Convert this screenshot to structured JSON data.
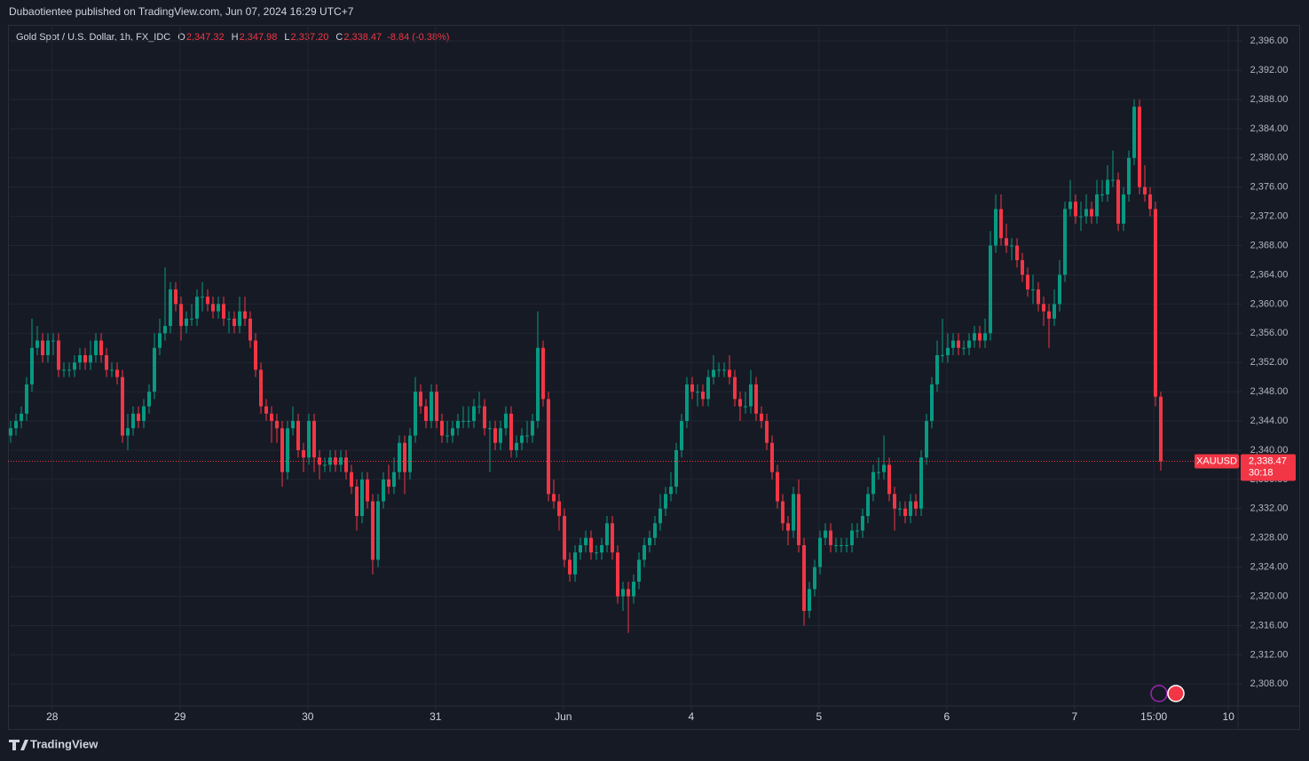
{
  "header": "Dubaotientee published on TradingView.com, Jun 07, 2024 16:29 UTC+7",
  "footer": "TradingView",
  "chart_data": {
    "type": "candlestick",
    "legend": {
      "symbol": "Gold Spot / U.S. Dollar, 1h, FX_IDC",
      "o_label": "O",
      "o": "2,347.32",
      "h_label": "H",
      "h": "2,347.98",
      "l_label": "L",
      "l": "2,337.20",
      "c_label": "C",
      "c": "2,338.47",
      "change": "-8.84 (-0.38%)"
    },
    "price_label": {
      "symbol": "XAUUSD",
      "price": "2,338.47",
      "countdown": "30:18"
    },
    "colors": {
      "up": "#089981",
      "down": "#f23645",
      "background": "#161a25",
      "grid": "#232632"
    },
    "grid": true,
    "xlim": [
      -0.5,
      230.5
    ],
    "xticks": [
      {
        "value": 7.8,
        "label": "28"
      },
      {
        "value": 31.8,
        "label": "29"
      },
      {
        "value": 55.8,
        "label": "30"
      },
      {
        "value": 79.8,
        "label": "31"
      },
      {
        "value": 103.8,
        "label": "Jun"
      },
      {
        "value": 127.8,
        "label": "4"
      },
      {
        "value": 151.8,
        "label": "5"
      },
      {
        "value": 175.8,
        "label": "6"
      },
      {
        "value": 199.8,
        "label": "7"
      },
      {
        "value": 214.7,
        "label": "15:00"
      },
      {
        "value": 228.7,
        "label": "10"
      }
    ],
    "ylim": [
      2305,
      2398.2
    ],
    "yticks": [
      {
        "value": 2308,
        "label": "2,308.00"
      },
      {
        "value": 2312,
        "label": "2,312.00"
      },
      {
        "value": 2316,
        "label": "2,316.00"
      },
      {
        "value": 2320,
        "label": "2,320.00"
      },
      {
        "value": 2324,
        "label": "2,324.00"
      },
      {
        "value": 2328,
        "label": "2,328.00"
      },
      {
        "value": 2332,
        "label": "2,332.00"
      },
      {
        "value": 2336,
        "label": "2,336.00"
      },
      {
        "value": 2340,
        "label": "2,340.00"
      },
      {
        "value": 2344,
        "label": "2,344.00"
      },
      {
        "value": 2348,
        "label": "2,348.00"
      },
      {
        "value": 2352,
        "label": "2,352.00"
      },
      {
        "value": 2356,
        "label": "2,356.00"
      },
      {
        "value": 2360,
        "label": "2,360.00"
      },
      {
        "value": 2364,
        "label": "2,364.00"
      },
      {
        "value": 2368,
        "label": "2,368.00"
      },
      {
        "value": 2372,
        "label": "2,372.00"
      },
      {
        "value": 2376,
        "label": "2,376.00"
      },
      {
        "value": 2380,
        "label": "2,380.00"
      },
      {
        "value": 2384,
        "label": "2,384.00"
      },
      {
        "value": 2388,
        "label": "2,388.00"
      },
      {
        "value": 2392,
        "label": "2,392.00"
      },
      {
        "value": 2396,
        "label": "2,396.00"
      }
    ],
    "ohlc": [
      [
        2342,
        2344,
        2341,
        2343
      ],
      [
        2343,
        2345,
        2342,
        2344
      ],
      [
        2344,
        2346,
        2343,
        2345
      ],
      [
        2345,
        2350,
        2344,
        2349
      ],
      [
        2349,
        2358,
        2348,
        2354
      ],
      [
        2354,
        2357,
        2353,
        2355
      ],
      [
        2355,
        2356,
        2352,
        2353
      ],
      [
        2353,
        2356,
        2352,
        2355
      ],
      [
        2355,
        2356,
        2353,
        2355
      ],
      [
        2355,
        2356,
        2350,
        2351
      ],
      [
        2351,
        2352,
        2350,
        2351
      ],
      [
        2351,
        2352,
        2350,
        2351
      ],
      [
        2351,
        2353,
        2350,
        2352
      ],
      [
        2352,
        2354,
        2351,
        2353
      ],
      [
        2353,
        2354,
        2351,
        2352
      ],
      [
        2352,
        2355,
        2351,
        2353
      ],
      [
        2353,
        2356,
        2352,
        2355
      ],
      [
        2355,
        2356,
        2352,
        2353
      ],
      [
        2353,
        2354,
        2350,
        2351
      ],
      [
        2351,
        2352,
        2350,
        2351
      ],
      [
        2351,
        2352,
        2349,
        2350
      ],
      [
        2350,
        2351,
        2341,
        2342
      ],
      [
        2342,
        2345,
        2340,
        2343
      ],
      [
        2343,
        2346,
        2342,
        2345
      ],
      [
        2345,
        2346,
        2343,
        2344
      ],
      [
        2344,
        2347,
        2343,
        2346
      ],
      [
        2346,
        2349,
        2345,
        2348
      ],
      [
        2348,
        2356,
        2347,
        2354
      ],
      [
        2354,
        2358,
        2353,
        2356
      ],
      [
        2356,
        2365,
        2355,
        2357
      ],
      [
        2357,
        2363,
        2356,
        2362
      ],
      [
        2362,
        2363,
        2359,
        2360
      ],
      [
        2360,
        2361,
        2355,
        2357
      ],
      [
        2357,
        2359,
        2356,
        2358
      ],
      [
        2358,
        2360,
        2357,
        2358
      ],
      [
        2358,
        2362,
        2357,
        2361
      ],
      [
        2361,
        2363,
        2359,
        2361
      ],
      [
        2361,
        2362,
        2359,
        2360
      ],
      [
        2360,
        2361,
        2358,
        2359
      ],
      [
        2359,
        2361,
        2358,
        2360
      ],
      [
        2360,
        2361,
        2357,
        2358
      ],
      [
        2358,
        2359,
        2356,
        2358
      ],
      [
        2358,
        2359,
        2356,
        2357
      ],
      [
        2357,
        2361,
        2356,
        2359
      ],
      [
        2359,
        2361,
        2357,
        2358
      ],
      [
        2358,
        2359,
        2354,
        2355
      ],
      [
        2355,
        2356,
        2350,
        2351
      ],
      [
        2351,
        2352,
        2345,
        2346
      ],
      [
        2346,
        2347,
        2344,
        2345
      ],
      [
        2345,
        2346,
        2341,
        2344
      ],
      [
        2344,
        2345,
        2341,
        2343
      ],
      [
        2343,
        2344,
        2335,
        2337
      ],
      [
        2337,
        2344,
        2336,
        2343
      ],
      [
        2343,
        2346,
        2342,
        2344
      ],
      [
        2344,
        2345,
        2339,
        2340
      ],
      [
        2340,
        2341,
        2337,
        2339
      ],
      [
        2339,
        2345,
        2338,
        2344
      ],
      [
        2344,
        2345,
        2337,
        2339
      ],
      [
        2339,
        2340,
        2336,
        2338
      ],
      [
        2338,
        2339,
        2337,
        2338
      ],
      [
        2338,
        2340,
        2337,
        2339
      ],
      [
        2339,
        2340,
        2337,
        2338
      ],
      [
        2338,
        2340,
        2337,
        2339
      ],
      [
        2339,
        2340,
        2336,
        2337
      ],
      [
        2337,
        2338,
        2334,
        2335
      ],
      [
        2335,
        2336,
        2329,
        2331
      ],
      [
        2331,
        2337,
        2330,
        2336
      ],
      [
        2336,
        2337,
        2332,
        2333
      ],
      [
        2333,
        2334,
        2323,
        2325
      ],
      [
        2325,
        2334,
        2324,
        2333
      ],
      [
        2333,
        2337,
        2332,
        2336
      ],
      [
        2336,
        2338,
        2334,
        2335
      ],
      [
        2335,
        2339,
        2334,
        2337
      ],
      [
        2337,
        2342,
        2336,
        2341
      ],
      [
        2341,
        2342,
        2334,
        2337
      ],
      [
        2337,
        2343,
        2336,
        2342
      ],
      [
        2342,
        2350,
        2341,
        2348
      ],
      [
        2348,
        2349,
        2345,
        2346
      ],
      [
        2346,
        2347,
        2343,
        2344
      ],
      [
        2344,
        2349,
        2343,
        2348
      ],
      [
        2348,
        2349,
        2343,
        2344
      ],
      [
        2344,
        2345,
        2341,
        2342
      ],
      [
        2342,
        2344,
        2341,
        2342
      ],
      [
        2342,
        2344,
        2341,
        2343
      ],
      [
        2343,
        2345,
        2342,
        2344
      ],
      [
        2344,
        2346,
        2343,
        2344
      ],
      [
        2344,
        2346,
        2343,
        2344
      ],
      [
        2344,
        2347,
        2343,
        2346
      ],
      [
        2346,
        2348,
        2345,
        2346
      ],
      [
        2346,
        2347,
        2342,
        2343
      ],
      [
        2343,
        2344,
        2337,
        2343
      ],
      [
        2343,
        2344,
        2340,
        2341
      ],
      [
        2341,
        2344,
        2340,
        2343
      ],
      [
        2343,
        2346,
        2342,
        2345
      ],
      [
        2345,
        2346,
        2339,
        2340
      ],
      [
        2340,
        2342,
        2339,
        2341
      ],
      [
        2341,
        2343,
        2340,
        2342
      ],
      [
        2342,
        2344,
        2341,
        2342
      ],
      [
        2342,
        2345,
        2341,
        2344
      ],
      [
        2344,
        2359,
        2343,
        2354
      ],
      [
        2354,
        2355,
        2346,
        2347
      ],
      [
        2347,
        2348,
        2333,
        2334
      ],
      [
        2334,
        2336,
        2332,
        2333
      ],
      [
        2333,
        2334,
        2329,
        2331
      ],
      [
        2331,
        2332,
        2324,
        2325
      ],
      [
        2325,
        2326,
        2322,
        2323
      ],
      [
        2323,
        2327,
        2322,
        2326
      ],
      [
        2326,
        2328,
        2325,
        2327
      ],
      [
        2327,
        2329,
        2326,
        2328
      ],
      [
        2328,
        2329,
        2325,
        2326
      ],
      [
        2326,
        2327,
        2325,
        2326
      ],
      [
        2326,
        2328,
        2325,
        2327
      ],
      [
        2327,
        2331,
        2326,
        2330
      ],
      [
        2330,
        2331,
        2325,
        2326
      ],
      [
        2326,
        2327,
        2319,
        2320
      ],
      [
        2320,
        2322,
        2318,
        2321
      ],
      [
        2321,
        2322,
        2315,
        2320
      ],
      [
        2320,
        2323,
        2319,
        2322
      ],
      [
        2322,
        2326,
        2321,
        2325
      ],
      [
        2325,
        2328,
        2324,
        2327
      ],
      [
        2327,
        2329,
        2326,
        2328
      ],
      [
        2328,
        2331,
        2327,
        2330
      ],
      [
        2330,
        2334,
        2329,
        2332
      ],
      [
        2332,
        2335,
        2331,
        2334
      ],
      [
        2334,
        2337,
        2333,
        2335
      ],
      [
        2335,
        2341,
        2334,
        2340
      ],
      [
        2340,
        2345,
        2339,
        2344
      ],
      [
        2344,
        2350,
        2343,
        2349
      ],
      [
        2349,
        2350,
        2347,
        2348
      ],
      [
        2348,
        2349,
        2346,
        2348
      ],
      [
        2348,
        2349,
        2346,
        2347
      ],
      [
        2347,
        2351,
        2346,
        2350
      ],
      [
        2350,
        2353,
        2349,
        2351
      ],
      [
        2351,
        2352,
        2350,
        2351
      ],
      [
        2351,
        2352,
        2350,
        2351
      ],
      [
        2351,
        2353,
        2349,
        2350
      ],
      [
        2350,
        2351,
        2346,
        2347
      ],
      [
        2347,
        2348,
        2344,
        2346
      ],
      [
        2346,
        2348,
        2345,
        2346
      ],
      [
        2346,
        2351,
        2345,
        2349
      ],
      [
        2349,
        2350,
        2344,
        2345
      ],
      [
        2345,
        2346,
        2343,
        2344
      ],
      [
        2344,
        2345,
        2340,
        2341
      ],
      [
        2341,
        2342,
        2336,
        2337
      ],
      [
        2337,
        2338,
        2332,
        2333
      ],
      [
        2333,
        2334,
        2329,
        2330
      ],
      [
        2330,
        2331,
        2327,
        2329
      ],
      [
        2329,
        2335,
        2328,
        2334
      ],
      [
        2334,
        2336,
        2326,
        2327
      ],
      [
        2327,
        2328,
        2316,
        2318
      ],
      [
        2318,
        2322,
        2317,
        2321
      ],
      [
        2321,
        2325,
        2320,
        2324
      ],
      [
        2324,
        2329,
        2323,
        2328
      ],
      [
        2328,
        2330,
        2327,
        2329
      ],
      [
        2329,
        2330,
        2326,
        2327
      ],
      [
        2327,
        2328,
        2326,
        2327
      ],
      [
        2327,
        2328,
        2326,
        2327
      ],
      [
        2327,
        2328,
        2326,
        2327
      ],
      [
        2327,
        2330,
        2326,
        2329
      ],
      [
        2329,
        2330,
        2328,
        2329
      ],
      [
        2329,
        2332,
        2328,
        2331
      ],
      [
        2331,
        2335,
        2330,
        2334
      ],
      [
        2334,
        2338,
        2333,
        2337
      ],
      [
        2337,
        2339,
        2336,
        2337
      ],
      [
        2337,
        2342,
        2336,
        2338
      ],
      [
        2338,
        2339,
        2333,
        2334
      ],
      [
        2334,
        2335,
        2329,
        2332
      ],
      [
        2332,
        2333,
        2331,
        2332
      ],
      [
        2332,
        2333,
        2330,
        2331
      ],
      [
        2331,
        2334,
        2330,
        2333
      ],
      [
        2333,
        2334,
        2331,
        2332
      ],
      [
        2332,
        2340,
        2331,
        2339
      ],
      [
        2339,
        2345,
        2338,
        2344
      ],
      [
        2344,
        2350,
        2343,
        2349
      ],
      [
        2349,
        2355,
        2348,
        2353
      ],
      [
        2353,
        2358,
        2352,
        2353
      ],
      [
        2353,
        2356,
        2352,
        2354
      ],
      [
        2354,
        2356,
        2353,
        2355
      ],
      [
        2355,
        2356,
        2353,
        2354
      ],
      [
        2354,
        2355,
        2353,
        2354
      ],
      [
        2354,
        2356,
        2353,
        2355
      ],
      [
        2355,
        2357,
        2354,
        2356
      ],
      [
        2356,
        2357,
        2354,
        2355
      ],
      [
        2355,
        2358,
        2354,
        2356
      ],
      [
        2356,
        2370,
        2355,
        2368
      ],
      [
        2368,
        2375,
        2367,
        2373
      ],
      [
        2373,
        2375,
        2368,
        2369
      ],
      [
        2369,
        2371,
        2367,
        2368
      ],
      [
        2368,
        2369,
        2366,
        2368
      ],
      [
        2368,
        2369,
        2365,
        2366
      ],
      [
        2366,
        2367,
        2363,
        2364
      ],
      [
        2364,
        2365,
        2361,
        2362
      ],
      [
        2362,
        2364,
        2360,
        2362
      ],
      [
        2362,
        2363,
        2359,
        2360
      ],
      [
        2360,
        2361,
        2357,
        2359
      ],
      [
        2359,
        2360,
        2354,
        2358
      ],
      [
        2358,
        2362,
        2357,
        2360
      ],
      [
        2360,
        2366,
        2359,
        2364
      ],
      [
        2364,
        2374,
        2363,
        2373
      ],
      [
        2373,
        2377,
        2372,
        2374
      ],
      [
        2374,
        2375,
        2371,
        2372
      ],
      [
        2372,
        2374,
        2370,
        2372
      ],
      [
        2372,
        2375,
        2371,
        2373
      ],
      [
        2373,
        2374,
        2371,
        2372
      ],
      [
        2372,
        2377,
        2371,
        2375
      ],
      [
        2375,
        2377,
        2374,
        2375
      ],
      [
        2375,
        2379,
        2374,
        2377
      ],
      [
        2377,
        2381,
        2376,
        2377
      ],
      [
        2377,
        2378,
        2370,
        2371
      ],
      [
        2371,
        2376,
        2370,
        2375
      ],
      [
        2375,
        2381,
        2374,
        2380
      ],
      [
        2380,
        2388,
        2379,
        2387
      ],
      [
        2387,
        2388,
        2375,
        2376
      ],
      [
        2376,
        2379,
        2374,
        2375
      ],
      [
        2375,
        2376,
        2372,
        2373
      ],
      [
        2373,
        2374,
        2346,
        2347.32
      ],
      [
        2347.32,
        2347.98,
        2337.2,
        2338.47
      ]
    ]
  }
}
